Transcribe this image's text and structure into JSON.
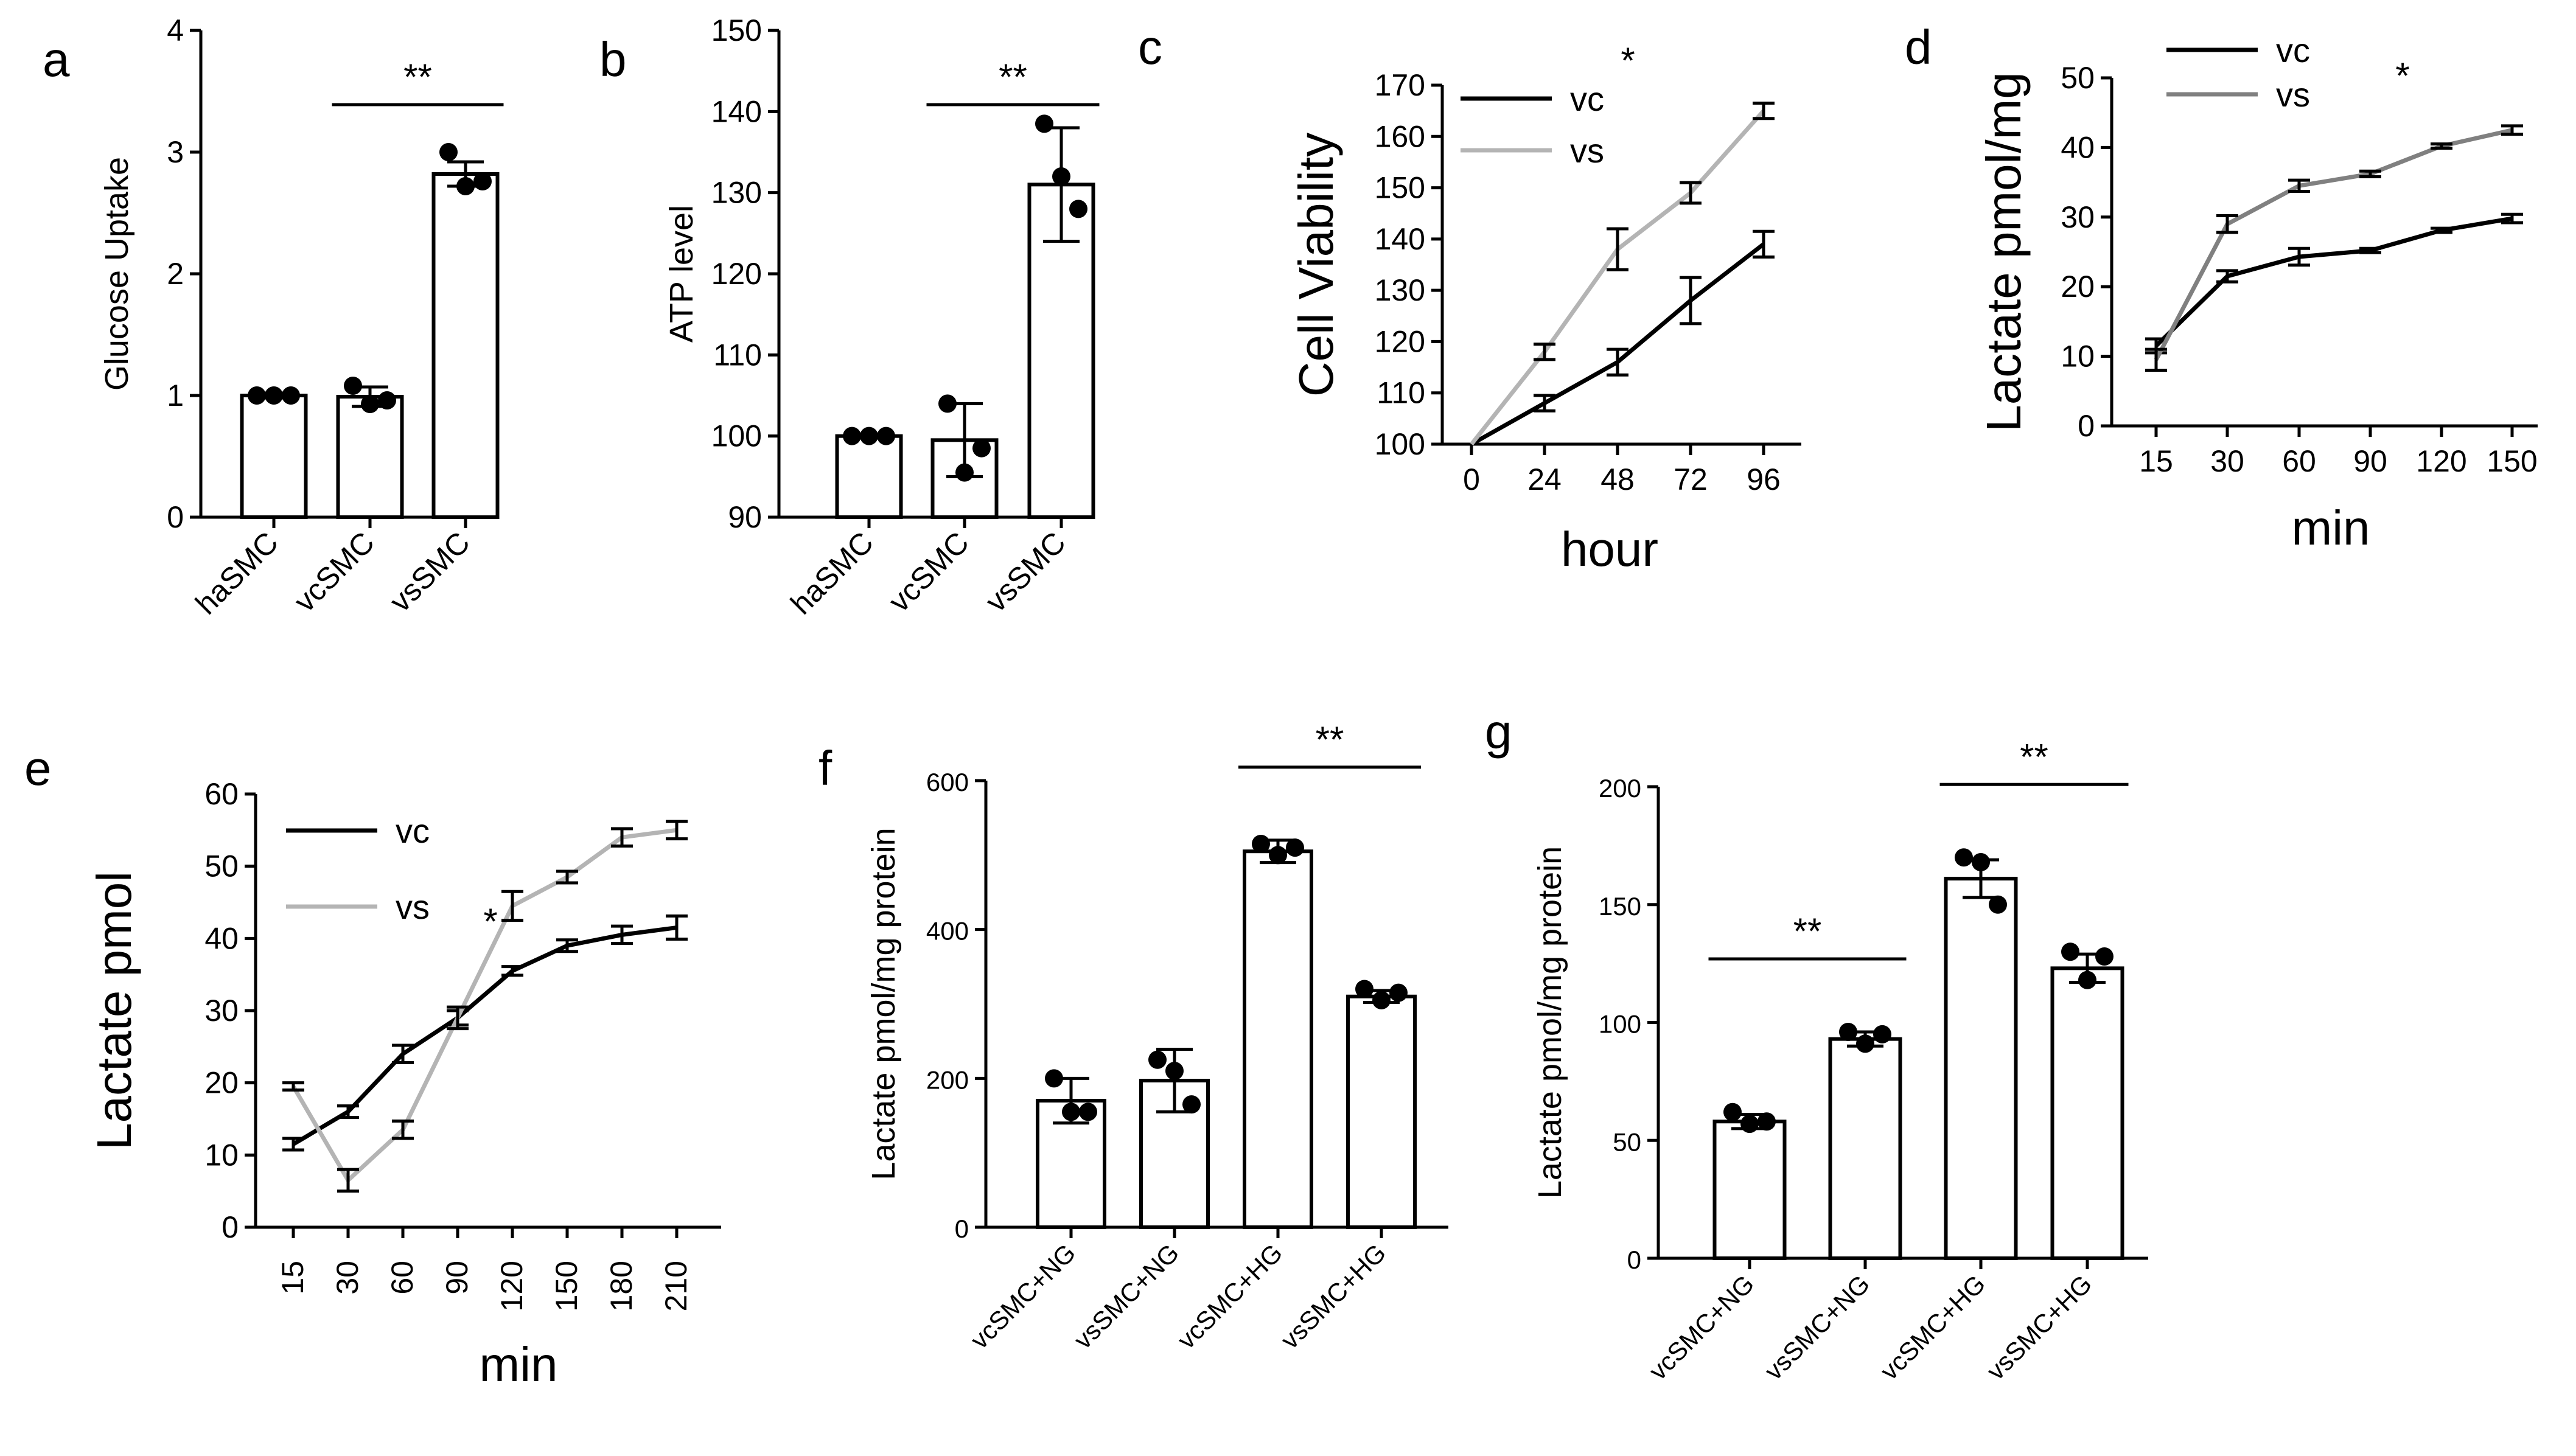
{
  "figure": {
    "panels": [
      "a",
      "b",
      "c",
      "d",
      "e",
      "f",
      "g"
    ]
  },
  "chart_data": [
    {
      "id": "a",
      "type": "bar",
      "categories": [
        "haSMC",
        "vcSMC",
        "vsSMC"
      ],
      "values": [
        1.0,
        0.99,
        2.82
      ],
      "errors": [
        0.02,
        0.08,
        0.1
      ],
      "points": [
        [
          1.0,
          1.0,
          1.0
        ],
        [
          1.08,
          0.93,
          0.96
        ],
        [
          3.0,
          2.72,
          2.76
        ]
      ],
      "ylabel": "Glucose Uptake",
      "xlabel": "",
      "ylim": [
        0,
        4
      ],
      "yticks": [
        "0",
        "1",
        "2",
        "3",
        "4"
      ],
      "significance": [
        {
          "from": 1,
          "to": 2,
          "label": "**"
        }
      ]
    },
    {
      "id": "b",
      "type": "bar",
      "categories": [
        "haSMC",
        "vcSMC",
        "vsSMC"
      ],
      "values": [
        100,
        99.5,
        131
      ],
      "errors": [
        0.2,
        4.5,
        7
      ],
      "points": [
        [
          100,
          100,
          100
        ],
        [
          104,
          95.5,
          98.5
        ],
        [
          138.5,
          132,
          128
        ]
      ],
      "ylabel": "ATP level",
      "xlabel": "",
      "ylim": [
        90,
        150
      ],
      "yticks": [
        "90",
        "100",
        "110",
        "120",
        "130",
        "140",
        "150"
      ],
      "significance": [
        {
          "from": 1,
          "to": 2,
          "label": "**"
        }
      ]
    },
    {
      "id": "c",
      "type": "line",
      "x": [
        0,
        24,
        48,
        72,
        96
      ],
      "xticks": [
        "0",
        "24",
        "48",
        "72",
        "96"
      ],
      "series": [
        {
          "name": "vc",
          "color": "#000000",
          "values": [
            100,
            108,
            116,
            128,
            139
          ],
          "errors": [
            0,
            1.5,
            2.5,
            4.5,
            2.5
          ]
        },
        {
          "name": "vs",
          "color": "#b4b4b4",
          "values": [
            100,
            118,
            138,
            149,
            165
          ],
          "errors": [
            0,
            1.5,
            4,
            2,
            1.5
          ]
        }
      ],
      "ylabel": "Cell Viability",
      "xlabel": "hour",
      "ylim": [
        100,
        170
      ],
      "yticks": [
        "100",
        "110",
        "120",
        "130",
        "140",
        "150",
        "160",
        "170"
      ],
      "significance_label": "*"
    },
    {
      "id": "d",
      "type": "line",
      "x": [
        15,
        30,
        60,
        90,
        120,
        150
      ],
      "xticks": [
        "15",
        "30",
        "60",
        "90",
        "120",
        "150"
      ],
      "series": [
        {
          "name": "vc",
          "color": "#000000",
          "values": [
            11.5,
            21.5,
            24.3,
            25.2,
            28.1,
            29.8
          ],
          "errors": [
            1,
            0.8,
            1.2,
            0.3,
            0.3,
            0.6
          ]
        },
        {
          "name": "vs",
          "color": "#808080",
          "values": [
            9.5,
            29,
            34.5,
            36.2,
            40.2,
            42.5
          ],
          "errors": [
            1.5,
            1.2,
            0.8,
            0.4,
            0.3,
            0.6
          ]
        }
      ],
      "ylabel": "Lactate pmol/mg",
      "xlabel": "min",
      "ylim": [
        0,
        50
      ],
      "yticks": [
        "0",
        "10",
        "20",
        "30",
        "40",
        "50"
      ],
      "significance_label": "*"
    },
    {
      "id": "e",
      "type": "line",
      "x": [
        15,
        30,
        60,
        90,
        120,
        150,
        180,
        210
      ],
      "xticks": [
        "15",
        "30",
        "60",
        "90",
        "120",
        "150",
        "180",
        "210"
      ],
      "series": [
        {
          "name": "vc",
          "color": "#000000",
          "values": [
            11.5,
            16,
            24,
            29,
            35.5,
            39,
            40.5,
            41.5
          ],
          "errors": [
            0.8,
            0.8,
            1.2,
            1,
            0.6,
            0.8,
            1.2,
            1.6
          ]
        },
        {
          "name": "vs",
          "color": "#b4b4b4",
          "values": [
            19.5,
            6.5,
            13.5,
            29,
            44.5,
            48.5,
            54,
            55
          ],
          "errors": [
            0.5,
            1.5,
            1.2,
            1.5,
            2,
            0.8,
            1.2,
            1.2
          ]
        }
      ],
      "ylabel": "Lactate pmol",
      "xlabel": "min",
      "ylim": [
        0,
        60
      ],
      "yticks": [
        "0",
        "10",
        "20",
        "30",
        "40",
        "50",
        "60"
      ],
      "significance_label": "*"
    },
    {
      "id": "f",
      "type": "bar",
      "categories": [
        "vcSMC+NG",
        "vsSMC+NG",
        "vcSMC+HG",
        "vsSMC+HG"
      ],
      "values": [
        170,
        197,
        505,
        310
      ],
      "errors": [
        30,
        42,
        15,
        8
      ],
      "points": [
        [
          200,
          155,
          155
        ],
        [
          225,
          210,
          165
        ],
        [
          515,
          500,
          510
        ],
        [
          320,
          305,
          315
        ]
      ],
      "ylabel": "Lactate pmol/mg protein",
      "xlabel": "",
      "ylim": [
        0,
        600
      ],
      "yticks": [
        "0",
        "200",
        "400",
        "600"
      ],
      "significance": [
        {
          "from": 2,
          "to": 3,
          "label": "**"
        }
      ]
    },
    {
      "id": "g",
      "type": "bar",
      "categories": [
        "vcSMC+NG",
        "vsSMC+NG",
        "vcSMC+HG",
        "vsSMC+HG"
      ],
      "values": [
        58,
        93,
        161,
        123
      ],
      "errors": [
        3,
        3,
        8,
        6
      ],
      "points": [
        [
          62,
          57,
          58
        ],
        [
          96,
          91,
          95
        ],
        [
          170,
          168,
          150
        ],
        [
          130,
          118,
          128
        ]
      ],
      "ylabel": "Lactate pmol/mg protein",
      "xlabel": "",
      "ylim": [
        0,
        200
      ],
      "yticks": [
        "0",
        "50",
        "100",
        "150",
        "200"
      ],
      "significance": [
        {
          "from": 0,
          "to": 1,
          "label": "**"
        },
        {
          "from": 2,
          "to": 3,
          "label": "**"
        }
      ]
    }
  ]
}
